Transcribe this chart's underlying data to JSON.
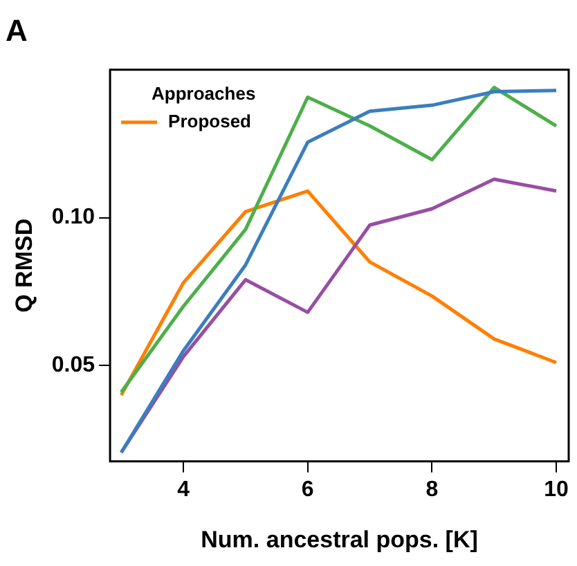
{
  "chart_data": {
    "type": "line",
    "title": "A",
    "xlabel": "Num. ancestral pops. [K]",
    "ylabel": "Q RMSD",
    "legend_title": "Approaches",
    "x": [
      3,
      4,
      5,
      6,
      7,
      8,
      9,
      10
    ],
    "series": [
      {
        "color": "#3a7ebf",
        "values": [
          0.0206,
          0.055,
          0.084,
          0.1255,
          0.136,
          0.138,
          0.1426,
          0.143
        ]
      },
      {
        "color": "#4daf4a",
        "values": [
          0.041,
          0.07,
          0.096,
          0.1407,
          0.131,
          0.1196,
          0.144,
          0.131
        ]
      },
      {
        "color": "#984ea3",
        "values": [
          0.0206,
          0.053,
          0.079,
          0.068,
          0.0975,
          0.103,
          0.113,
          0.109
        ]
      },
      {
        "name": "Proposed",
        "color": "#ff7f00",
        "values": [
          0.04,
          0.078,
          0.102,
          0.109,
          0.085,
          0.0735,
          0.059,
          0.051
        ]
      }
    ],
    "xlim": [
      2.82,
      10.2
    ],
    "ylim": [
      0.0176,
      0.15
    ],
    "xticks": [
      4,
      6,
      8,
      10
    ],
    "yticks": [
      {
        "value": 0.05,
        "label": "0.05"
      },
      {
        "value": 0.1,
        "label": "0.10"
      }
    ],
    "grid": false,
    "legend": "top left",
    "marker": "none",
    "line_style": "solid"
  }
}
